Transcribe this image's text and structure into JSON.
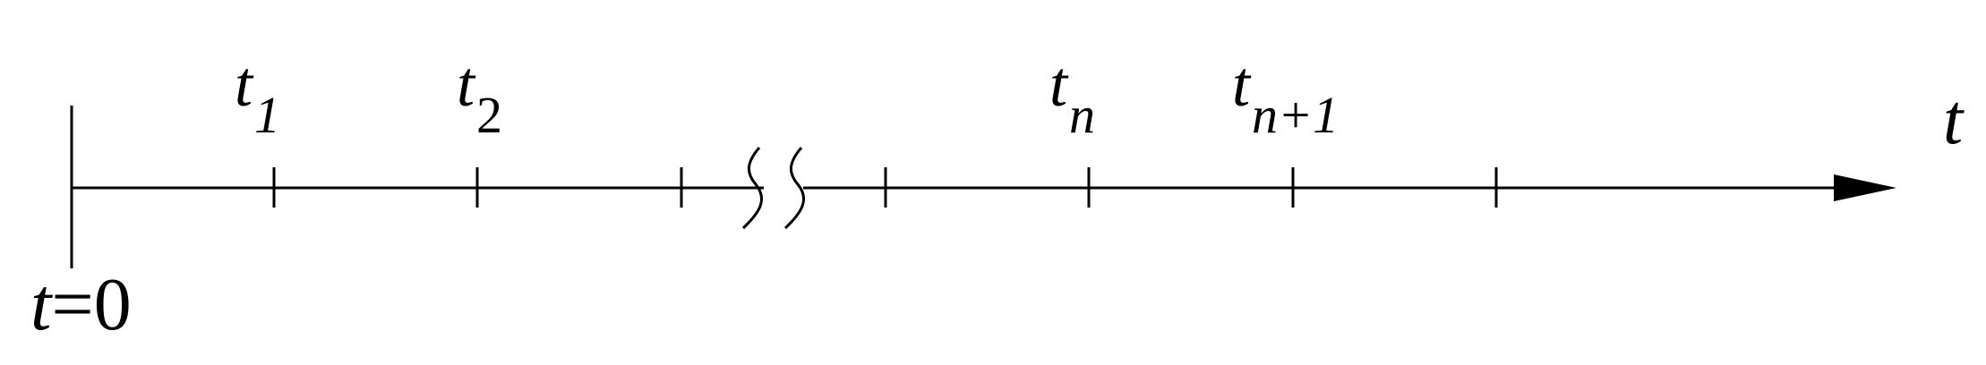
{
  "diagram": {
    "axis_label": "t",
    "origin_label": {
      "var": "t",
      "rest": "=0"
    },
    "time_labels": [
      {
        "var": "t",
        "sub": "1"
      },
      {
        "var": "t",
        "sub": "2"
      },
      {
        "var": "t",
        "sub": "n"
      },
      {
        "var": "t",
        "sub": "n+1"
      }
    ],
    "stroke_color": "#000000",
    "background": "#ffffff"
  }
}
